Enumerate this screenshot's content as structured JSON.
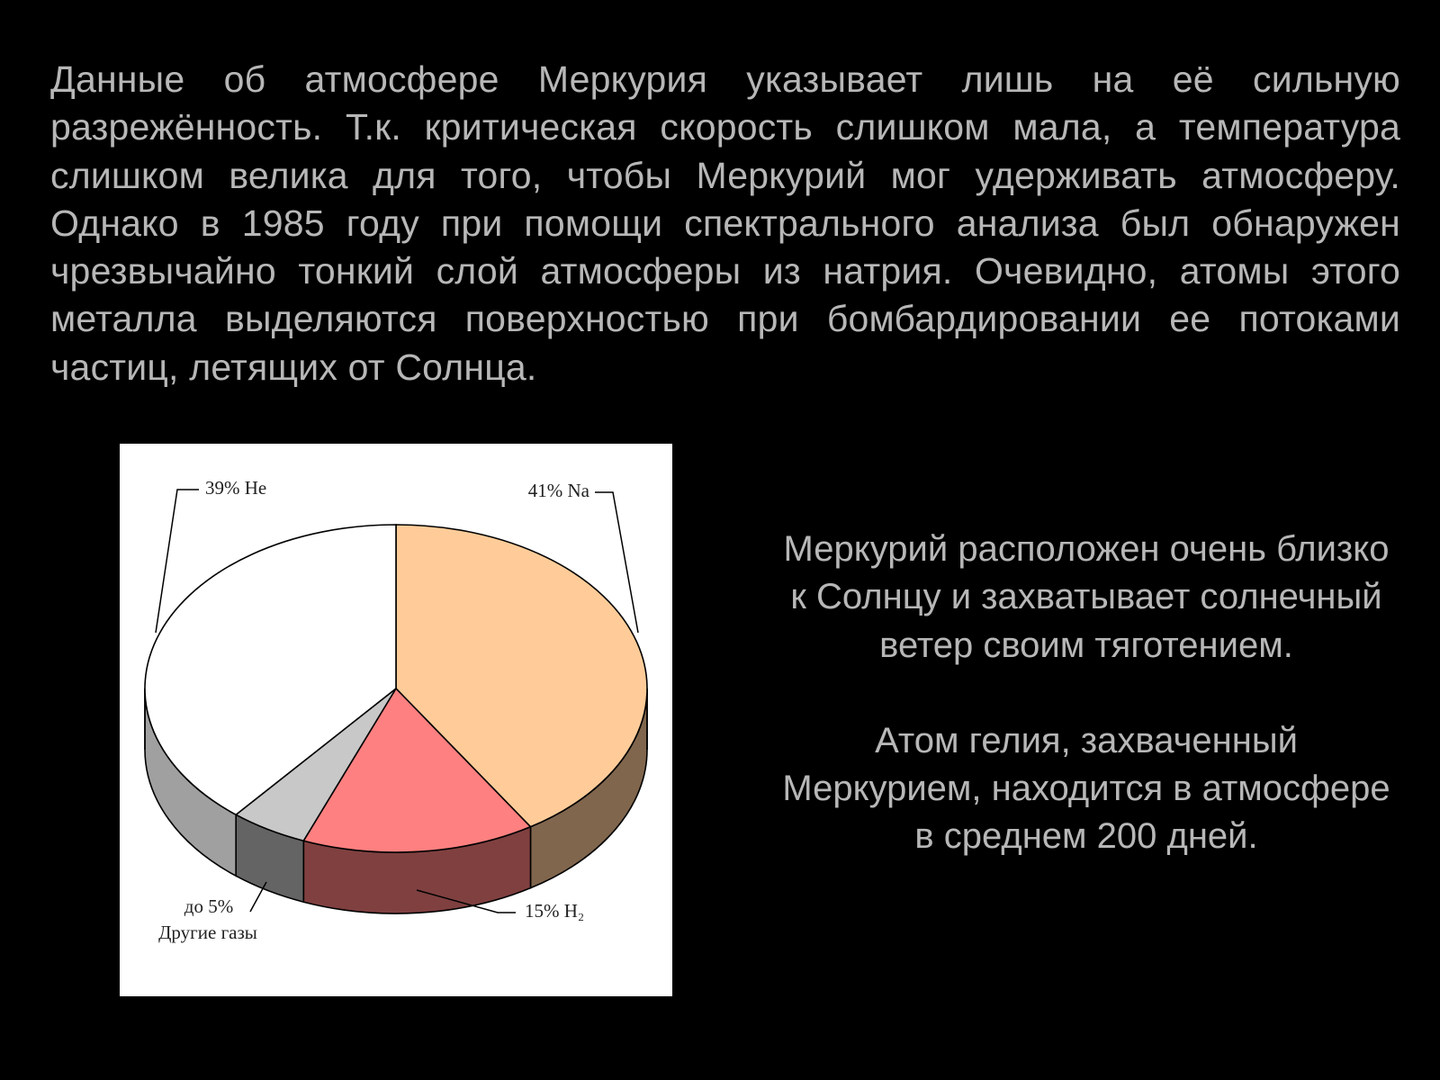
{
  "slide": {
    "paragraph": "Данные об атмосфере Меркурия указывает лишь на её сильную разрежённость. Т.к. критическая скорость слишком мала, а температура слишком велика для того, чтобы Меркурий мог удерживать атмосферу. Однако в 1985 году при помощи спектрального анализа был обнаружен чрезвычайно тонкий слой атмосферы из натрия. Очевидно, атомы этого металла выделяются поверхностью при бомбардировании ее потоками частиц, летящих от Солнца.",
    "side_text_1": "Меркурий расположен очень близко к Солнцу и захватывает солнечный ветер своим тяготением.",
    "side_text_2": "Атом гелия, захваченный Меркурием, находится в атмосфере в среднем 200 дней."
  },
  "chart_data": {
    "type": "pie",
    "style": "3d",
    "slices": [
      {
        "key": "na",
        "value": 41,
        "label": "41% Na",
        "color": "#ffcc99"
      },
      {
        "key": "h2",
        "value": 15,
        "label": "15% H₂",
        "color": "#ff8080"
      },
      {
        "key": "other",
        "value": 5,
        "label": "до 5%",
        "label2": "Другие газы",
        "color": "#c8c8c8"
      },
      {
        "key": "he",
        "value": 39,
        "label": "39% He",
        "color": "#ffffff"
      }
    ]
  }
}
